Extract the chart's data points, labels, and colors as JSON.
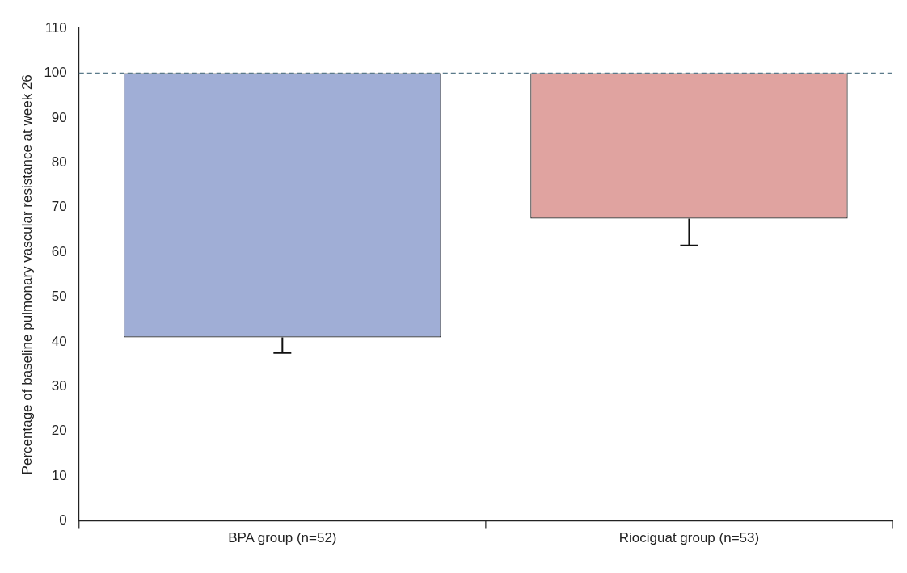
{
  "chart_data": {
    "type": "bar",
    "ylabel": "Percentage of baseline pulmonary vascular resistance at week 26",
    "categories": [
      "BPA group (n=52)",
      "Riociguat group (n=53)"
    ],
    "base": [
      100,
      100
    ],
    "values": [
      -59,
      -32.5
    ],
    "errors": [
      [
        37.5,
        41
      ],
      [
        61.5,
        67.5
      ]
    ],
    "colors": [
      "#a0aed6",
      "#e0a3a0"
    ],
    "ylim": [
      0,
      110
    ],
    "yticks": [
      0,
      10,
      20,
      30,
      40,
      50,
      60,
      70,
      80,
      90,
      100,
      110
    ],
    "ref_lines": [
      {
        "axis": "y",
        "value": 100,
        "color": "#5a7a8a",
        "line_style": "dashed"
      }
    ],
    "grid": false,
    "legend": false
  }
}
